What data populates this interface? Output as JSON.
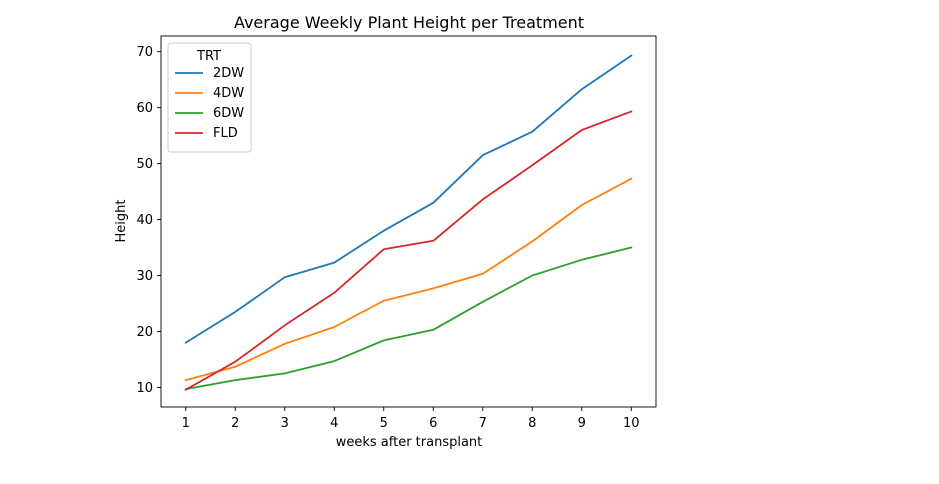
{
  "chart_data": {
    "type": "line",
    "title": "Average Weekly Plant Height per Treatment",
    "xlabel": "weeks after transplant",
    "ylabel": "Height",
    "x": [
      1,
      2,
      3,
      4,
      5,
      6,
      7,
      8,
      9,
      10
    ],
    "xlim": [
      0.5,
      10.5
    ],
    "ylim": [
      6.5,
      72.8
    ],
    "xticks": [
      "1",
      "2",
      "3",
      "4",
      "5",
      "6",
      "7",
      "8",
      "9",
      "10"
    ],
    "yticks": [
      10,
      20,
      30,
      40,
      50,
      60,
      70
    ],
    "grid": false,
    "legend": {
      "title": "TRT",
      "placement": "top-left"
    },
    "series": [
      {
        "name": "2DW",
        "color": "#1f77b4",
        "values": [
          18.0,
          23.5,
          29.7,
          32.3,
          38.0,
          43.0,
          51.5,
          55.7,
          63.3,
          69.3
        ]
      },
      {
        "name": "4DW",
        "color": "#ff7f0e",
        "values": [
          11.3,
          13.7,
          17.8,
          20.8,
          25.5,
          27.7,
          30.3,
          36.1,
          42.6,
          47.3
        ]
      },
      {
        "name": "6DW",
        "color": "#2ca02c",
        "values": [
          9.7,
          11.3,
          12.5,
          14.7,
          18.4,
          20.3,
          25.3,
          30.0,
          32.8,
          35.0
        ]
      },
      {
        "name": "FLD",
        "color": "#d62728",
        "values": [
          9.6,
          14.6,
          21.1,
          26.9,
          34.7,
          36.2,
          43.6,
          49.7,
          56.0,
          59.3
        ]
      }
    ]
  }
}
